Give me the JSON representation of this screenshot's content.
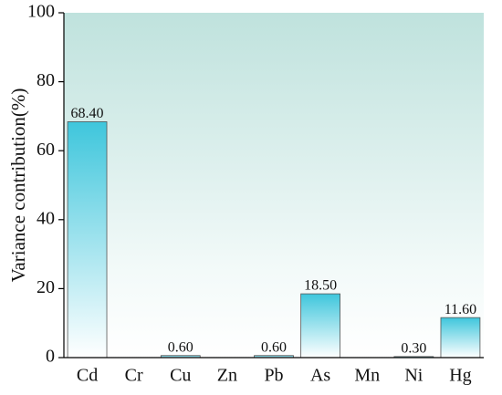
{
  "chart_data": {
    "type": "bar",
    "y_label": "Variance contribution(%)",
    "categories": [
      "Cd",
      "Cr",
      "Cu",
      "Zn",
      "Pb",
      "As",
      "Mn",
      "Ni",
      "Hg"
    ],
    "values": [
      68.4,
      null,
      0.6,
      null,
      0.6,
      18.5,
      null,
      0.3,
      11.6
    ],
    "value_labels": [
      "68.40",
      null,
      "0.60",
      null,
      "0.60",
      "18.50",
      null,
      "0.30",
      "11.60"
    ],
    "color": "#3ec6dc",
    "ylim": [
      0,
      100
    ],
    "yticks": [
      0,
      20,
      40,
      60,
      80,
      100
    ]
  }
}
